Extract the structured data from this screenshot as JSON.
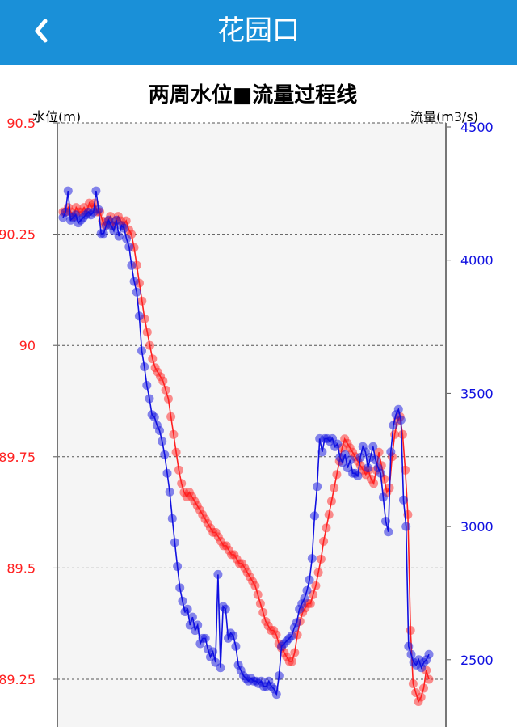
{
  "header": {
    "title": "花园口",
    "back_icon": "chevron-left-icon"
  },
  "colors": {
    "header_bg": "#1a90d8",
    "level_series": "#ff2020",
    "flow_series": "#1010e0",
    "plot_bg": "#f5f5f5"
  },
  "chart_data": {
    "type": "line",
    "title": "两周水位■流量过程线",
    "y_left_label": "水位(m)",
    "y_right_label": "流量(m3/s)",
    "y_left_ticks": [
      "90.5",
      "90.25",
      "90",
      "89.75",
      "89.5",
      "89.25"
    ],
    "y_right_ticks": [
      "4500",
      "4000",
      "3500",
      "3000",
      "2500"
    ],
    "y_left_range": [
      89.2,
      90.5
    ],
    "y_right_range": [
      2350,
      4500
    ],
    "grid": "horizontal dashed",
    "series": [
      {
        "axis": "left",
        "values": [
          90.3,
          90.3,
          90.31,
          90.3,
          90.29,
          90.31,
          90.3,
          90.3,
          90.31,
          90.3,
          90.32,
          90.31,
          90.32,
          90.3,
          90.3,
          90.28,
          90.27,
          90.28,
          90.29,
          90.27,
          90.28,
          90.29,
          90.28,
          90.27,
          90.28,
          90.26,
          90.25,
          90.22,
          90.18,
          90.14,
          90.1,
          90.06,
          90.03,
          90.0,
          89.97,
          89.95,
          89.94,
          89.93,
          89.92,
          89.9,
          89.88,
          89.84,
          89.8,
          89.76,
          89.72,
          89.69,
          89.67,
          89.66,
          89.67,
          89.66,
          89.65,
          89.64,
          89.63,
          89.62,
          89.61,
          89.6,
          89.59,
          89.58,
          89.58,
          89.57,
          89.56,
          89.55,
          89.55,
          89.54,
          89.53,
          89.53,
          89.52,
          89.51,
          89.51,
          89.5,
          89.49,
          89.48,
          89.47,
          89.46,
          89.44,
          89.42,
          89.4,
          89.38,
          89.37,
          89.36,
          89.36,
          89.35,
          89.33,
          89.32,
          89.31,
          89.3,
          89.29,
          89.29,
          89.31,
          89.35,
          89.38,
          89.4,
          89.41,
          89.42,
          89.42,
          89.44,
          89.46,
          89.49,
          89.52,
          89.56,
          89.59,
          89.62,
          89.65,
          89.68,
          89.71,
          89.74,
          89.77,
          89.79,
          89.78,
          89.77,
          89.76,
          89.75,
          89.74,
          89.73,
          89.72,
          89.71,
          89.72,
          89.7,
          89.69,
          89.72,
          89.76,
          89.73,
          89.7,
          89.67,
          89.68,
          89.75,
          89.8,
          89.83,
          89.84,
          89.8,
          89.72,
          89.62,
          89.36,
          89.24,
          89.22,
          89.2,
          89.21,
          89.23,
          89.27,
          89.25
        ]
      },
      {
        "axis": "right",
        "values": [
          4160,
          4180,
          4260,
          4150,
          4160,
          4170,
          4140,
          4150,
          4160,
          4170,
          4180,
          4170,
          4180,
          4260,
          4190,
          4100,
          4100,
          4130,
          4150,
          4130,
          4110,
          4150,
          4090,
          4130,
          4120,
          4080,
          4050,
          3980,
          3920,
          3880,
          3790,
          3660,
          3600,
          3530,
          3480,
          3420,
          3410,
          3380,
          3360,
          3320,
          3270,
          3200,
          3130,
          3030,
          2940,
          2850,
          2770,
          2720,
          2680,
          2690,
          2630,
          2660,
          2610,
          2630,
          2560,
          2580,
          2580,
          2540,
          2510,
          2530,
          2490,
          2820,
          2470,
          2700,
          2690,
          2580,
          2600,
          2590,
          2550,
          2480,
          2460,
          2440,
          2430,
          2420,
          2430,
          2420,
          2420,
          2410,
          2420,
          2400,
          2400,
          2420,
          2400,
          2390,
          2370,
          2440,
          2550,
          2560,
          2570,
          2580,
          2590,
          2620,
          2640,
          2690,
          2710,
          2730,
          2760,
          2800,
          2880,
          3040,
          3150,
          3330,
          3280,
          3330,
          3330,
          3320,
          3330,
          3300,
          3310,
          3260,
          3240,
          3270,
          3220,
          3250,
          3200,
          3200,
          3190,
          3260,
          3300,
          3280,
          3220,
          3260,
          3300,
          3250,
          3220,
          3200,
          3110,
          3020,
          2980,
          3280,
          3380,
          3420,
          3440,
          3400,
          3100,
          3000,
          2550,
          2520,
          2490,
          2480,
          2500,
          2470,
          2490,
          2500,
          2520
        ]
      }
    ]
  }
}
